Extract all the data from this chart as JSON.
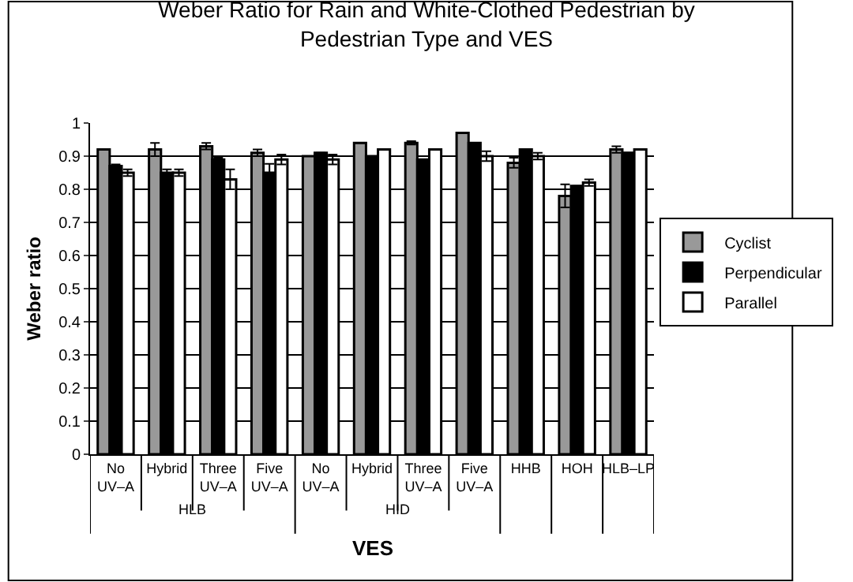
{
  "chart_data": {
    "type": "bar",
    "title": "Weber Ratio for Rain and White-Clothed Pedestrian by Pedestrian Type and VES",
    "xlabel": "VES",
    "ylabel": "Weber ratio",
    "categories": [
      "No UV–A",
      "Hybrid",
      "Three UV–A",
      "Five UV–A",
      "No UV–A",
      "Hybrid",
      "Three UV–A",
      "Five UV–A",
      "HHB",
      "HOH",
      "HLB–LP"
    ],
    "annotations": [
      "HLB",
      "HID"
    ],
    "series": [
      {
        "name": "Cyclist",
        "color": "#999999",
        "values": [
          0.92,
          0.92,
          0.93,
          0.91,
          0.9,
          0.94,
          0.94,
          0.97,
          0.88,
          0.78,
          0.92
        ],
        "errors": [
          null,
          0.02,
          0.01,
          0.01,
          null,
          null,
          0.005,
          null,
          0.015,
          0.035,
          0.01
        ]
      },
      {
        "name": "Perpendicular",
        "color": "#000000",
        "values": [
          0.87,
          0.85,
          0.89,
          0.85,
          0.91,
          0.9,
          0.89,
          0.94,
          0.92,
          0.81,
          0.91
        ],
        "errors": [
          0.005,
          0.01,
          0.005,
          0.027,
          null,
          null,
          null,
          null,
          null,
          null,
          null
        ]
      },
      {
        "name": "Parallel",
        "color": "#ffffff",
        "values": [
          0.85,
          0.85,
          0.83,
          0.89,
          0.89,
          0.92,
          0.92,
          0.9,
          0.9,
          0.82,
          0.92
        ],
        "errors": [
          0.01,
          0.01,
          0.03,
          0.015,
          0.015,
          null,
          null,
          0.015,
          0.01,
          0.01,
          null
        ]
      }
    ],
    "ylim": [
      0,
      1
    ],
    "yticks": [
      0,
      0.1,
      0.2,
      0.3,
      0.4,
      0.5,
      0.6,
      0.7,
      0.8,
      0.9,
      1
    ],
    "grid": "y",
    "legend": "right"
  }
}
